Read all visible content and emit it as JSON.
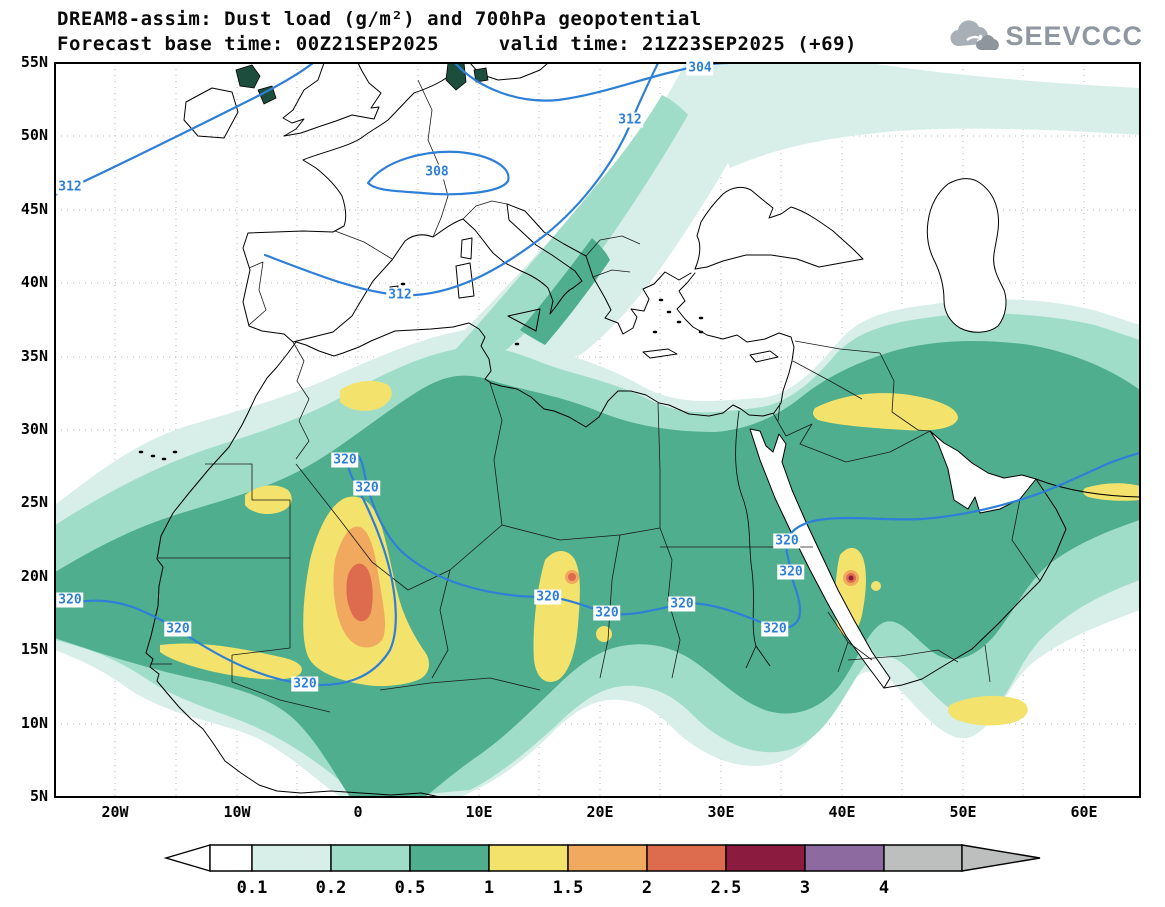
{
  "header": {
    "title_line1": "DREAM8-assim: Dust load (g/m²) and 700hPa geopotential",
    "title_line2": "Forecast base time: 00Z21SEP2025     valid time: 21Z23SEP2025 (+69)",
    "logo_text": "SEEVCCC"
  },
  "map": {
    "lat_labels": [
      "55N",
      "50N",
      "45N",
      "40N",
      "35N",
      "30N",
      "25N",
      "20N",
      "15N",
      "10N",
      "5N"
    ],
    "lon_labels": [
      "20W",
      "10W",
      "0",
      "10E",
      "20E",
      "30E",
      "40E",
      "50E",
      "60E"
    ],
    "geopotential_labels": [
      "312",
      "308",
      "304",
      "312",
      "312",
      "320",
      "320",
      "320",
      "320",
      "320",
      "320",
      "320",
      "320",
      "320",
      "320",
      "320"
    ],
    "contour_color": "#2e7fd8"
  },
  "colorbar": {
    "labels": [
      "0.1",
      "0.2",
      "0.5",
      "1",
      "1.5",
      "2",
      "2.5",
      "3",
      "4"
    ],
    "box_colors": [
      "#ffffff",
      "#d8efe9",
      "#a0ddc8",
      "#4fae8e",
      "#f3e26b",
      "#f0a95f",
      "#dd6b4d",
      "#8c1c3f",
      "#8d6ba1",
      "#bcbfbe"
    ],
    "left_arrow_color": "#ffffff",
    "right_arrow_color": "#bcbfbe",
    "units_note": "g/m²"
  }
}
